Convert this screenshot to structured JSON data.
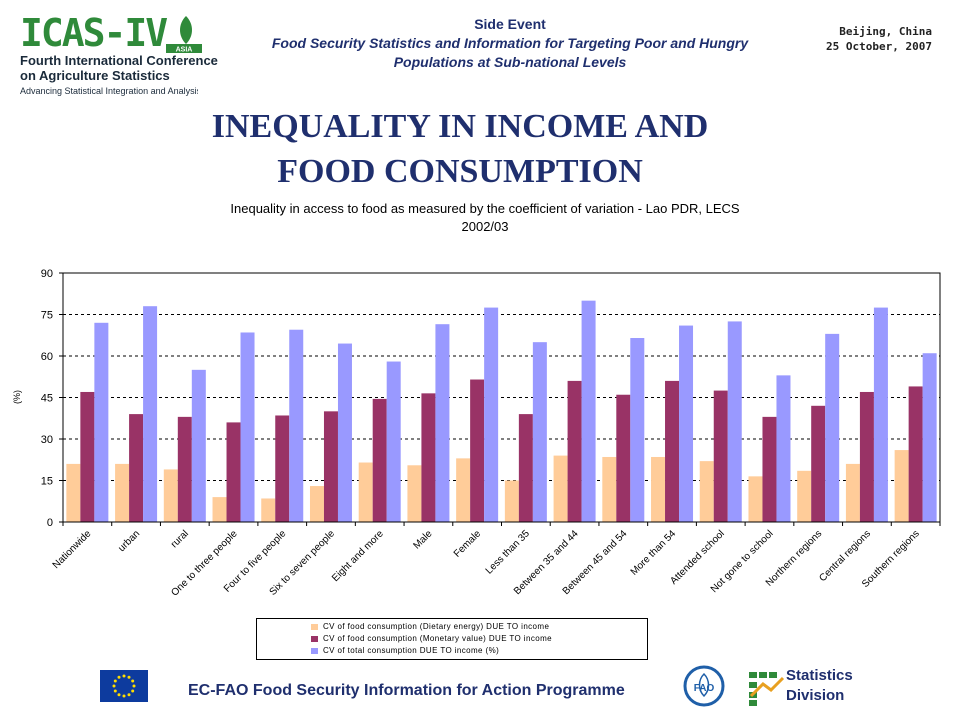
{
  "header": {
    "logo": {
      "mark": "ICAS-IV",
      "region": "ASIA",
      "line1": "Fourth International Conference",
      "line2": "on Agriculture Statistics",
      "line3": "Advancing Statistical Integration and Analysis"
    },
    "side_event": "Side Event",
    "subtitle_line1": "Food Security Statistics and Information for Targeting Poor and Hungry",
    "subtitle_line2": "Populations at Sub-national Levels",
    "place": "Beijing, China",
    "date": "25 October, 2007"
  },
  "slide_title_line1": "INEQUALITY IN INCOME AND",
  "slide_title_line2": "FOOD CONSUMPTION",
  "chart_data": {
    "type": "bar",
    "title": "Inequality in access to food as measured by the coefficient of variation - Lao PDR, LECS 2002/03",
    "title_line1": "Inequality in access to food as measured by the coefficient of variation - Lao PDR, LECS",
    "title_line2": "2002/03",
    "xlabel": "",
    "ylabel": "(%)",
    "ylim": [
      0,
      90
    ],
    "yticks": [
      0,
      15,
      30,
      45,
      60,
      75,
      90
    ],
    "grid": true,
    "legend_position": "bottom",
    "categories": [
      "Nationwide",
      "urban",
      "rural",
      "One to three people",
      "Four to five people",
      "Six to seven people",
      "Eight and more",
      "Male",
      "Female",
      "Less than 35",
      "Between 35 and 44",
      "Between 45 and 54",
      "More than 54",
      "Attended school",
      "Not gone to school",
      "Northern regions",
      "Central regions",
      "Southern regions"
    ],
    "series": [
      {
        "name": "CV of food consumption (Dietary energy) DUE TO income",
        "color": "#ffcc99",
        "values": [
          21,
          21,
          19,
          9,
          8.5,
          13,
          21.5,
          20.5,
          23,
          15,
          24,
          23.5,
          23.5,
          22,
          16.5,
          18.5,
          21,
          26
        ]
      },
      {
        "name": "CV of food consumption (Monetary value) DUE TO income",
        "color": "#993366",
        "values": [
          47,
          39,
          38,
          36,
          38.5,
          40,
          44.5,
          46.5,
          51.5,
          39,
          51,
          46,
          51,
          47.5,
          38,
          42,
          47,
          49
        ]
      },
      {
        "name": "CV of total consumption DUE TO income (%)",
        "color": "#9999ff",
        "values": [
          72,
          78,
          55,
          68.5,
          69.5,
          64.5,
          58,
          71.5,
          77.5,
          65,
          80,
          66.5,
          71,
          72.5,
          53,
          68,
          77.5,
          61
        ]
      }
    ]
  },
  "footer": {
    "programme": "EC-FAO Food Security Information for Action Programme",
    "fao_label": "FAO",
    "stats_line1": "Statistics",
    "stats_line2": "Division"
  }
}
